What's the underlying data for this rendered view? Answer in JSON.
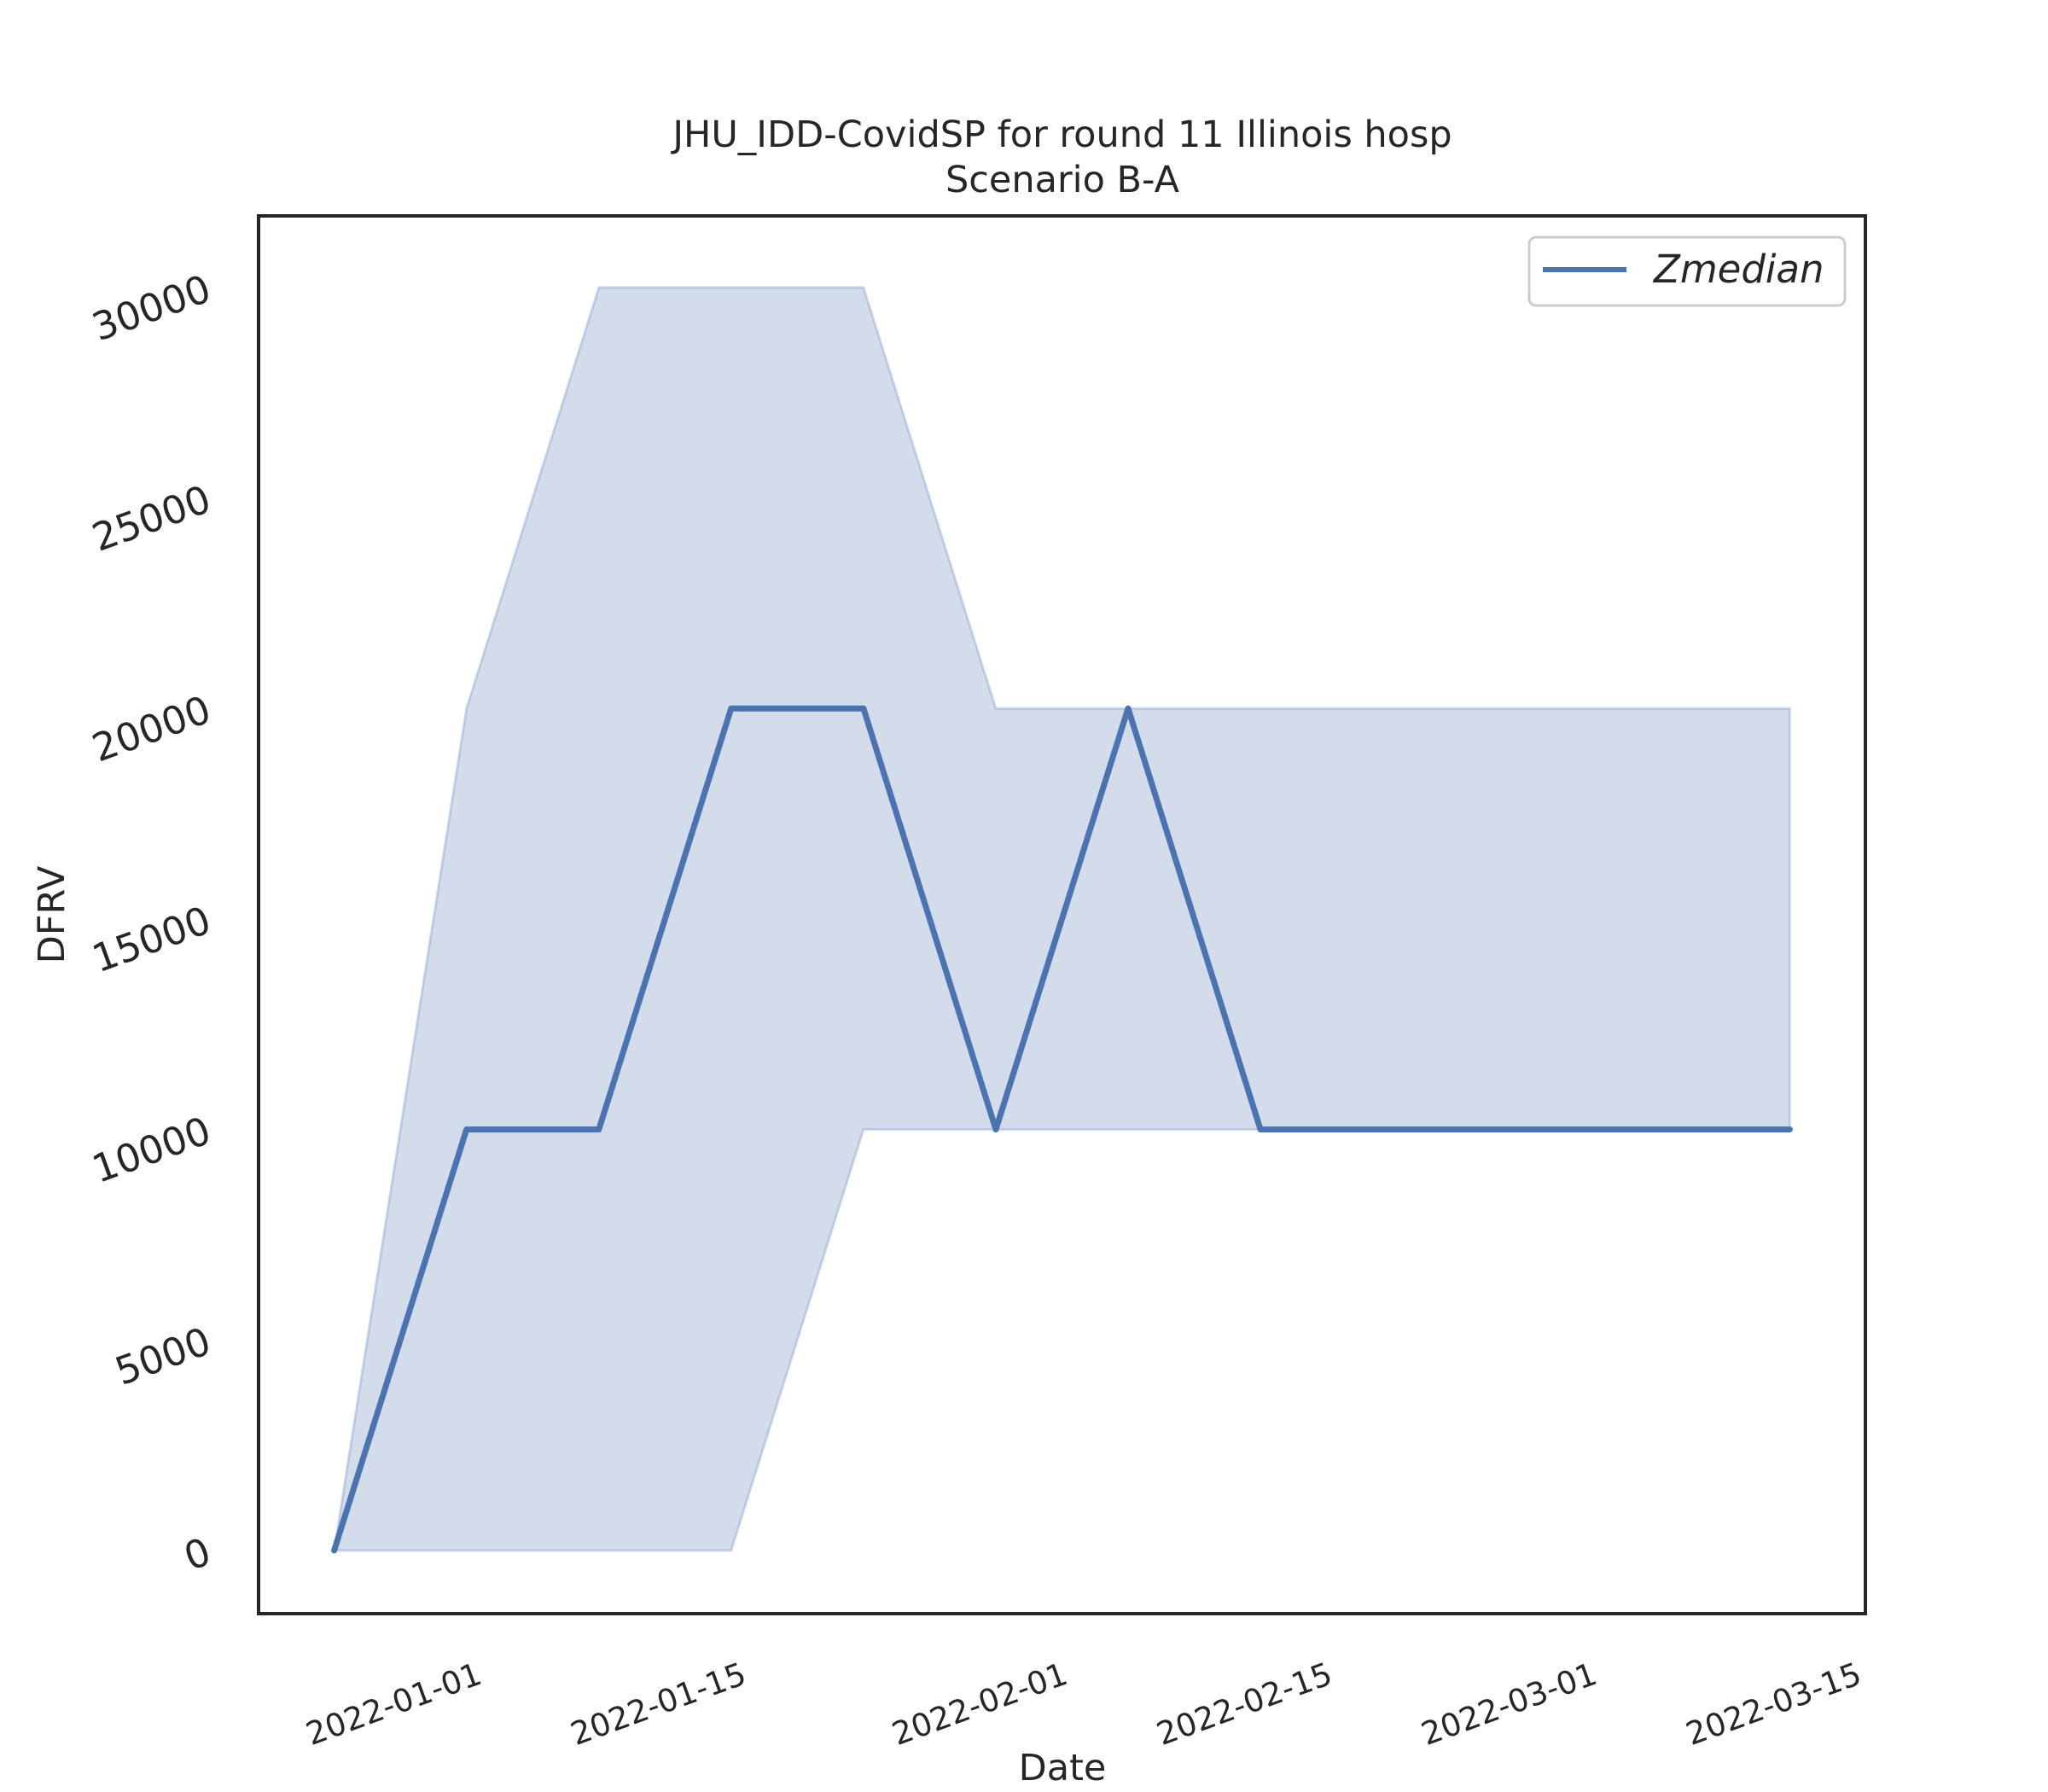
{
  "chart_data": {
    "type": "line",
    "title": "JHU_IDD-CovidSP for round 11 Illinois hosp",
    "subtitle": "Scenario B-A",
    "xlabel": "Date",
    "ylabel": "DFRV",
    "x_ticks": [
      "2022-01-01",
      "2022-01-15",
      "2022-02-01",
      "2022-02-15",
      "2022-03-01",
      "2022-03-15"
    ],
    "y_ticks": [
      "0",
      "5000",
      "10000",
      "15000",
      "20000",
      "25000",
      "30000"
    ],
    "xlim": [
      "2021-12-21",
      "2022-03-16"
    ],
    "ylim": [
      -1500,
      31700
    ],
    "legend": {
      "position": "top-right",
      "entries": [
        "Zmedian"
      ]
    },
    "grid": false,
    "colors": {
      "line": "#4c72b0",
      "band": "#4c72b0"
    },
    "series": [
      {
        "name": "Zmedian",
        "x": [
          "2021-12-25",
          "2022-01-01",
          "2022-01-08",
          "2022-01-15",
          "2022-01-22",
          "2022-01-29",
          "2022-02-05",
          "2022-02-12",
          "2022-02-19",
          "2022-02-26",
          "2022-03-05",
          "2022-03-12"
        ],
        "values": [
          0,
          10000,
          10000,
          20000,
          20000,
          10000,
          20000,
          10000,
          10000,
          10000,
          10000,
          10000
        ]
      }
    ],
    "band": {
      "x": [
        "2021-12-25",
        "2022-01-01",
        "2022-01-08",
        "2022-01-15",
        "2022-01-22",
        "2022-01-29",
        "2022-02-05",
        "2022-02-12",
        "2022-02-19",
        "2022-02-26",
        "2022-03-05",
        "2022-03-12"
      ],
      "lower": [
        0,
        0,
        0,
        0,
        10000,
        10000,
        10000,
        10000,
        10000,
        10000,
        10000,
        10000
      ],
      "upper": [
        0,
        20000,
        30000,
        30000,
        30000,
        20000,
        20000,
        20000,
        20000,
        20000,
        20000,
        20000
      ]
    }
  }
}
